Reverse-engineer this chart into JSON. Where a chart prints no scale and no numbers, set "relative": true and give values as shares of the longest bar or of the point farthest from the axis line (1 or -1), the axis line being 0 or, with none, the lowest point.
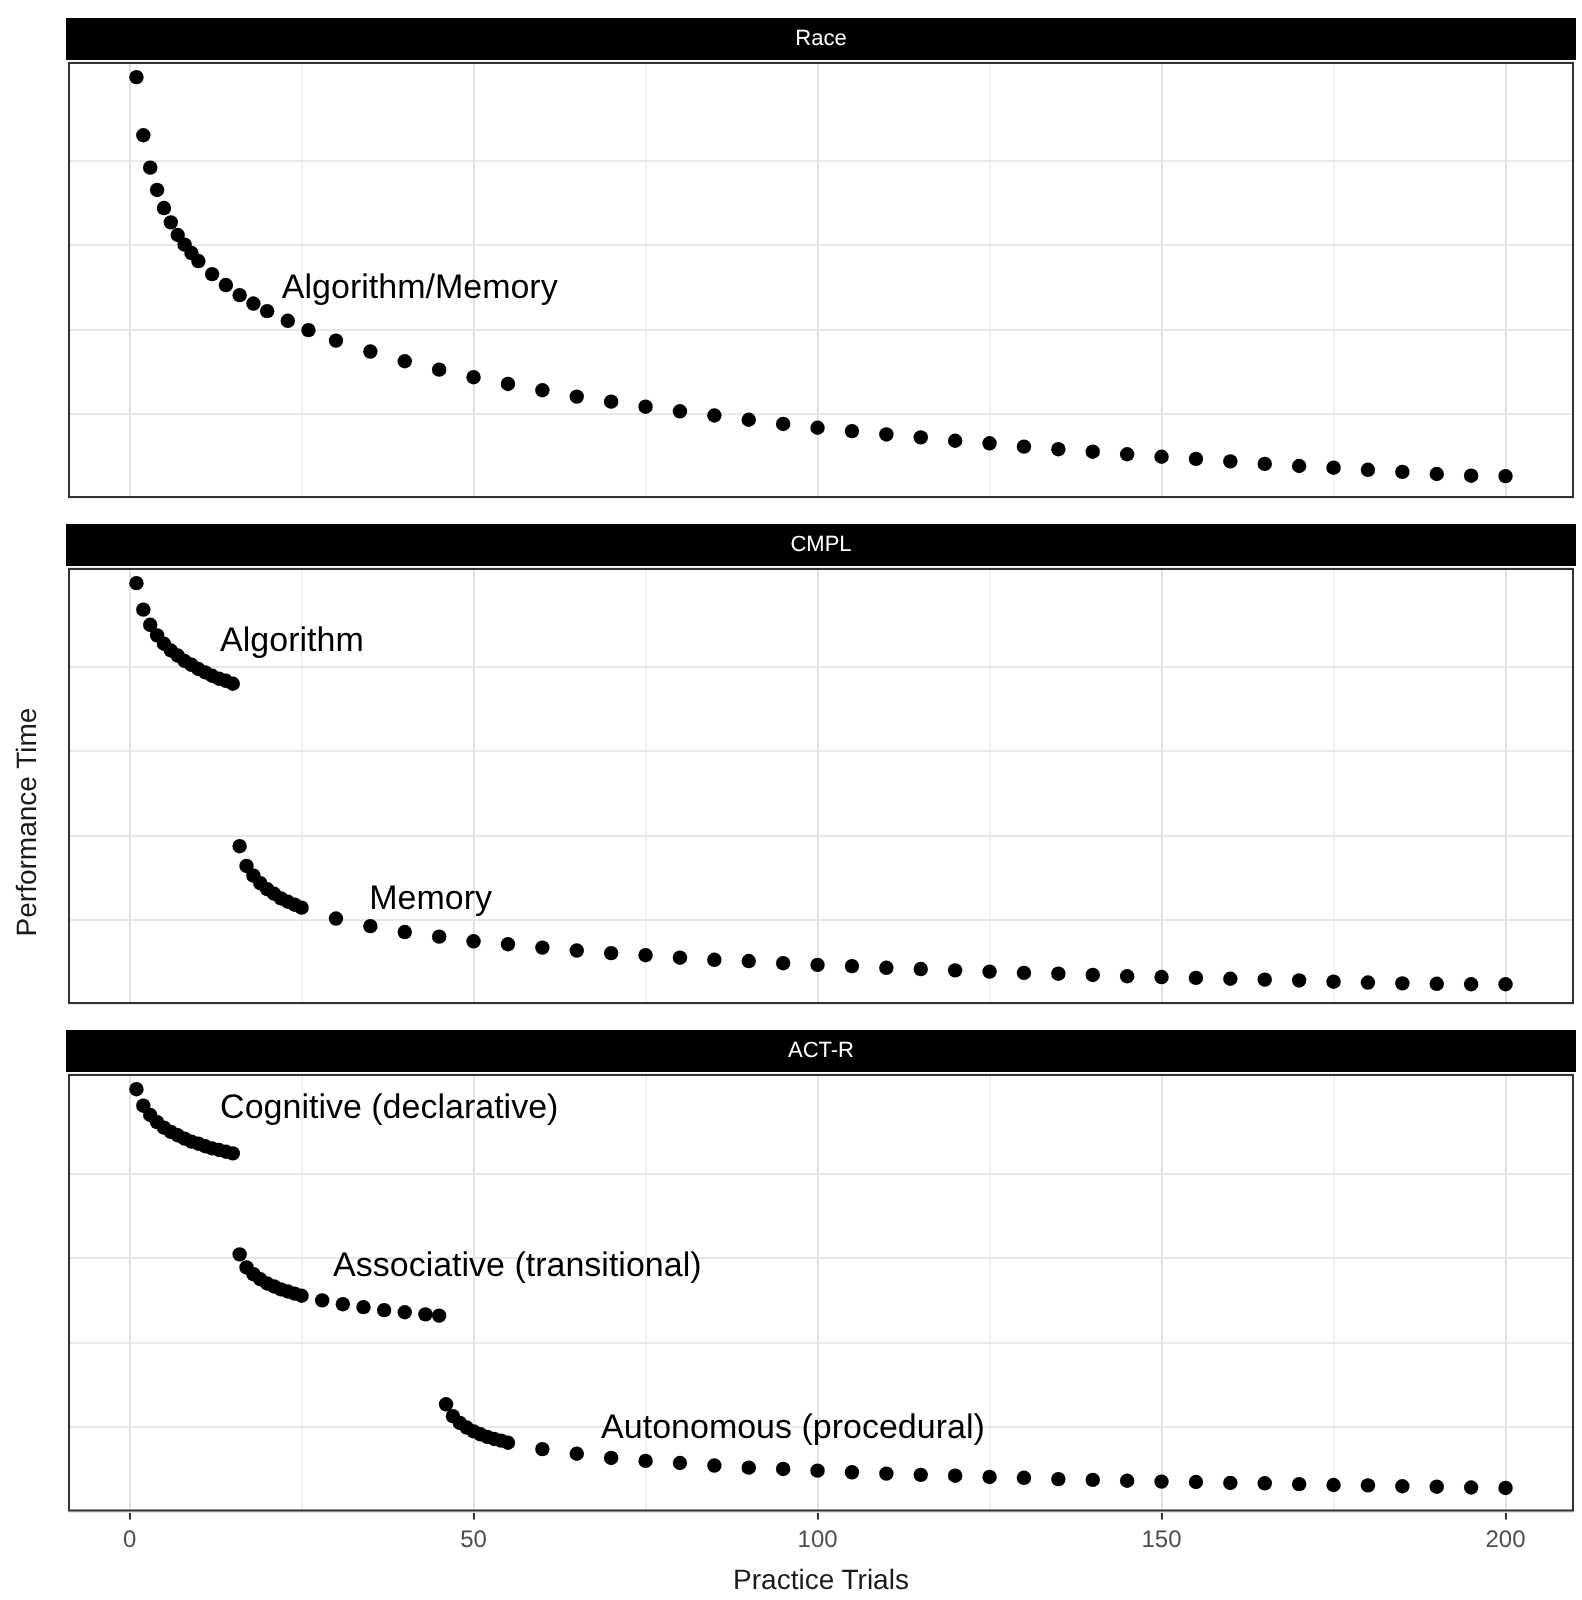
{
  "chart_data": [
    {
      "type": "scatter",
      "title": "Race",
      "relative": true,
      "grid": true,
      "marker": "circle",
      "tick_labels": false,
      "xlim": [
        -8.95,
        209.95
      ],
      "xticks": [
        0,
        {
          "value": 25,
          "label": null
        },
        50,
        {
          "value": 75,
          "label": null
        },
        100,
        {
          "value": 125,
          "label": null
        },
        150,
        {
          "value": 175,
          "label": null
        },
        200
      ],
      "series": [
        {
          "color": "#000000",
          "x": [
            1,
            2,
            3,
            4,
            5,
            6,
            7,
            8,
            9,
            10,
            12,
            14,
            16,
            18,
            20,
            23,
            26,
            30,
            35,
            40,
            45,
            50,
            55,
            60,
            65,
            70,
            75,
            80,
            85,
            90,
            95,
            100,
            105,
            110,
            115,
            120,
            125,
            130,
            135,
            140,
            145,
            150,
            155,
            160,
            165,
            170,
            175,
            180,
            185,
            190,
            195,
            200
          ],
          "values": [
            1,
            0.862,
            0.785,
            0.732,
            0.689,
            0.655,
            0.625,
            0.602,
            0.582,
            0.563,
            0.532,
            0.506,
            0.482,
            0.462,
            0.444,
            0.421,
            0.399,
            0.374,
            0.348,
            0.325,
            0.305,
            0.287,
            0.271,
            0.256,
            0.241,
            0.229,
            0.217,
            0.206,
            0.196,
            0.186,
            0.176,
            0.167,
            0.159,
            0.151,
            0.144,
            0.136,
            0.13,
            0.122,
            0.116,
            0.11,
            0.104,
            0.098,
            0.093,
            0.087,
            0.081,
            0.076,
            0.072,
            0.067,
            0.062,
            0.057,
            0.053,
            0.052
          ]
        }
      ],
      "annotations": [
        "Algorithm/Memory"
      ]
    },
    {
      "type": "scatter",
      "title": "CMPL",
      "ylabel": "Performance Time",
      "relative": true,
      "grid": true,
      "marker": "circle",
      "tick_labels": false,
      "xlim": [
        -8.95,
        209.95
      ],
      "xticks": [
        0,
        {
          "value": 25,
          "label": null
        },
        50,
        {
          "value": 75,
          "label": null
        },
        100,
        {
          "value": 125,
          "label": null
        },
        150,
        {
          "value": 175,
          "label": null
        },
        200
      ],
      "series": [
        {
          "color": "#000000",
          "x": [
            1,
            2,
            3,
            4,
            5,
            6,
            7,
            8,
            9,
            10,
            11,
            12,
            13,
            14,
            15
          ],
          "values": [
            1,
            0.937,
            0.901,
            0.876,
            0.856,
            0.84,
            0.828,
            0.815,
            0.806,
            0.796,
            0.788,
            0.78,
            0.773,
            0.768,
            0.761
          ]
        },
        {
          "color": "#000000",
          "x": [
            16,
            17,
            18,
            19,
            20,
            21,
            22,
            23,
            24,
            25,
            30,
            35,
            40,
            45,
            50,
            55,
            60,
            65,
            70,
            75,
            80,
            85,
            90,
            95,
            100,
            105,
            110,
            115,
            120,
            125,
            130,
            135,
            140,
            145,
            150,
            155,
            160,
            165,
            170,
            175,
            180,
            185,
            190,
            195,
            200
          ],
          "values": [
            0.375,
            0.328,
            0.305,
            0.287,
            0.273,
            0.262,
            0.251,
            0.243,
            0.236,
            0.229,
            0.203,
            0.185,
            0.171,
            0.16,
            0.149,
            0.142,
            0.134,
            0.127,
            0.121,
            0.116,
            0.11,
            0.105,
            0.102,
            0.097,
            0.093,
            0.09,
            0.086,
            0.083,
            0.08,
            0.077,
            0.074,
            0.072,
            0.069,
            0.066,
            0.064,
            0.062,
            0.06,
            0.058,
            0.056,
            0.053,
            0.051,
            0.049,
            0.048,
            0.047,
            0.047
          ]
        }
      ],
      "annotations": [
        "Algorithm",
        "Memory"
      ]
    },
    {
      "type": "scatter",
      "title": "ACT-R",
      "xlabel": "Practice Trials",
      "relative": true,
      "grid": true,
      "marker": "circle",
      "tick_labels": "x",
      "xlim": [
        -8.95,
        209.95
      ],
      "xticks": [
        0,
        {
          "value": 25,
          "label": null
        },
        50,
        {
          "value": 75,
          "label": null
        },
        100,
        {
          "value": 125,
          "label": null
        },
        150,
        {
          "value": 175,
          "label": null
        },
        200
      ],
      "series": [
        {
          "color": "#000000",
          "x": [
            1,
            2,
            3,
            4,
            5,
            6,
            7,
            8,
            9,
            10,
            11,
            12,
            13,
            14,
            15
          ],
          "values": [
            1,
            0.961,
            0.939,
            0.922,
            0.909,
            0.899,
            0.891,
            0.883,
            0.876,
            0.871,
            0.865,
            0.86,
            0.856,
            0.852,
            0.848
          ]
        },
        {
          "color": "#000000",
          "x": [
            16,
            17,
            18,
            19,
            20,
            21,
            22,
            23,
            24,
            25,
            28,
            31,
            34,
            37,
            40,
            43,
            45
          ],
          "values": [
            0.609,
            0.578,
            0.562,
            0.55,
            0.54,
            0.533,
            0.526,
            0.521,
            0.516,
            0.511,
            0.5,
            0.491,
            0.484,
            0.477,
            0.472,
            0.467,
            0.464
          ]
        },
        {
          "color": "#000000",
          "x": [
            46,
            47,
            48,
            49,
            50,
            51,
            52,
            53,
            54,
            55,
            60,
            65,
            70,
            75,
            80,
            85,
            90,
            95,
            100,
            105,
            110,
            115,
            120,
            125,
            130,
            135,
            140,
            145,
            150,
            155,
            160,
            165,
            170,
            175,
            180,
            185,
            190,
            195,
            200
          ],
          "values": [
            0.254,
            0.226,
            0.21,
            0.199,
            0.19,
            0.183,
            0.177,
            0.172,
            0.168,
            0.163,
            0.148,
            0.137,
            0.127,
            0.12,
            0.115,
            0.109,
            0.104,
            0.101,
            0.097,
            0.093,
            0.09,
            0.087,
            0.085,
            0.082,
            0.08,
            0.077,
            0.075,
            0.073,
            0.071,
            0.07,
            0.068,
            0.067,
            0.065,
            0.063,
            0.062,
            0.06,
            0.059,
            0.057,
            0.056
          ]
        }
      ],
      "annotations": [
        "Cognitive (declarative)",
        "Associative (transitional)",
        "Autonomous (procedural)"
      ]
    }
  ]
}
